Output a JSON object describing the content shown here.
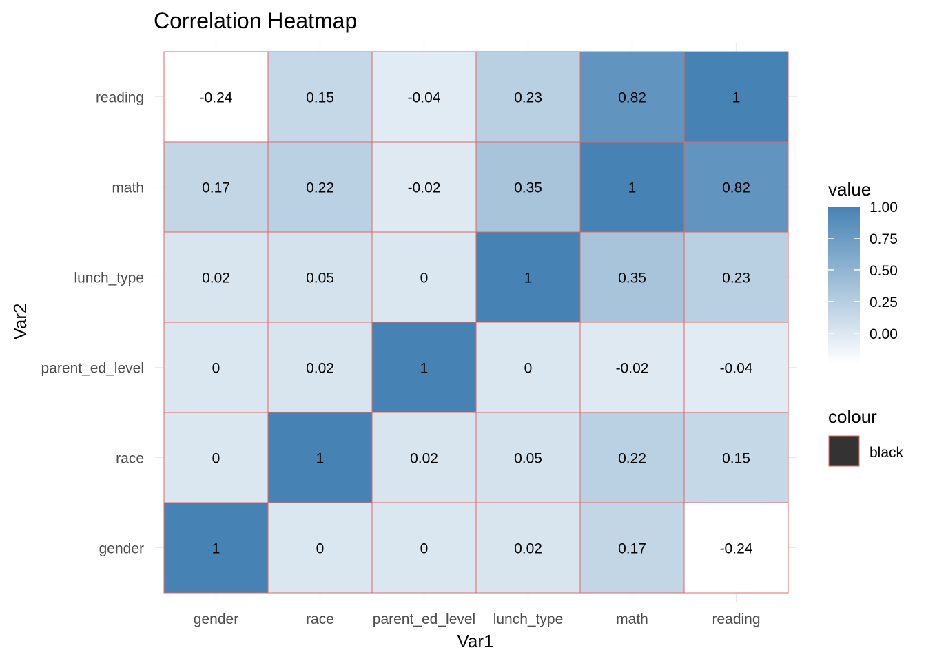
{
  "chart_data": {
    "type": "heatmap",
    "title": "Correlation Heatmap",
    "xlabel": "Var1",
    "ylabel": "Var2",
    "x_categories": [
      "gender",
      "race",
      "parent_ed_level",
      "lunch_type",
      "math",
      "reading"
    ],
    "y_categories": [
      "gender",
      "race",
      "parent_ed_level",
      "lunch_type",
      "math",
      "reading"
    ],
    "values": [
      [
        1,
        0,
        0,
        0.02,
        0.17,
        -0.24
      ],
      [
        0,
        1,
        0.02,
        0.05,
        0.22,
        0.15
      ],
      [
        0,
        0.02,
        1,
        0,
        -0.02,
        -0.04
      ],
      [
        0.02,
        0.05,
        0,
        1,
        0.35,
        0.23
      ],
      [
        0.17,
        0.22,
        -0.02,
        0.35,
        1,
        0.82
      ],
      [
        -0.24,
        0.15,
        -0.04,
        0.23,
        0.82,
        1
      ]
    ],
    "cell_labels": [
      [
        "1",
        "0",
        "0",
        "0.02",
        "0.17",
        "-0.24"
      ],
      [
        "0",
        "1",
        "0.02",
        "0.05",
        "0.22",
        "0.15"
      ],
      [
        "0",
        "0.02",
        "1",
        "0",
        "-0.02",
        "-0.04"
      ],
      [
        "0.02",
        "0.05",
        "0",
        "1",
        "0.35",
        "0.23"
      ],
      [
        "0.17",
        "0.22",
        "-0.02",
        "0.35",
        "1",
        "0.82"
      ],
      [
        "-0.24",
        "0.15",
        "-0.04",
        "0.23",
        "0.82",
        "1"
      ]
    ],
    "value_range": [
      -0.24,
      1
    ],
    "color_low": "#ffffff",
    "color_high": "#4682b4",
    "cell_border_color": "#e06666",
    "grid": true,
    "legend": {
      "placement": "right",
      "fill_title": "value",
      "fill_ticks": [
        1.0,
        0.75,
        0.5,
        0.25,
        0.0
      ],
      "fill_tick_labels": [
        "1.00",
        "0.75",
        "0.50",
        "0.25",
        "0.00"
      ],
      "colour_title": "colour",
      "colour_entry": "black",
      "colour_swatch": "#333333"
    }
  }
}
